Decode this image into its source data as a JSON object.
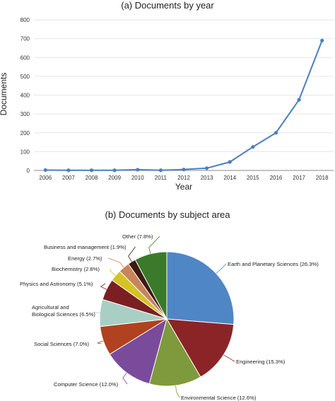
{
  "colors": {
    "line": "#4a7fbf",
    "grid": "#e6e6e6",
    "axis": "#888888",
    "text": "#222222"
  },
  "chart_data": [
    {
      "type": "line",
      "title": "(a) Documents by year",
      "xlabel": "Year",
      "ylabel": "Documents",
      "x": [
        "2006",
        "2007",
        "2008",
        "2009",
        "2010",
        "2011",
        "2012",
        "2013",
        "2014",
        "2015",
        "2016",
        "2017",
        "2018"
      ],
      "yticks": [
        0,
        100,
        200,
        300,
        400,
        500,
        600,
        700,
        800
      ],
      "ylim": [
        0,
        800
      ],
      "grid": true,
      "series": [
        {
          "values": [
            2,
            1,
            1,
            1,
            4,
            1,
            5,
            12,
            45,
            125,
            200,
            375,
            690
          ]
        }
      ]
    },
    {
      "type": "pie",
      "title": "(b) Documents by subject area",
      "slices": [
        {
          "label": "Earth and Planetary Sciences (26.3%)",
          "value": 26.3,
          "color": "#4f86c6"
        },
        {
          "label": "Engineering (15.3%)",
          "value": 15.3,
          "color": "#8b2427"
        },
        {
          "label": "Environmental Science (12.6%)",
          "value": 12.6,
          "color": "#7f9a3c"
        },
        {
          "label": "Computer Science (12.0%)",
          "value": 12.0,
          "color": "#7a4b9b"
        },
        {
          "label": "Social Sciences (7.0%)",
          "value": 7.0,
          "color": "#b0421f"
        },
        {
          "label": "Agricultural and Biological Sciences (6.5%)",
          "value": 6.5,
          "color": "#a9cfc5"
        },
        {
          "label": "Physics and Astronomy (5.1%)",
          "value": 5.1,
          "color": "#7b1f23"
        },
        {
          "label": "Biochemistry (2.8%)",
          "value": 2.8,
          "color": "#d6c223"
        },
        {
          "label": "Energy (2.7%)",
          "value": 2.7,
          "color": "#c9845a"
        },
        {
          "label": "Business and management (1.9%)",
          "value": 1.9,
          "color": "#3d1a12"
        },
        {
          "label": "Other (7.8%)",
          "value": 7.8,
          "color": "#3b7a2a"
        }
      ]
    }
  ]
}
